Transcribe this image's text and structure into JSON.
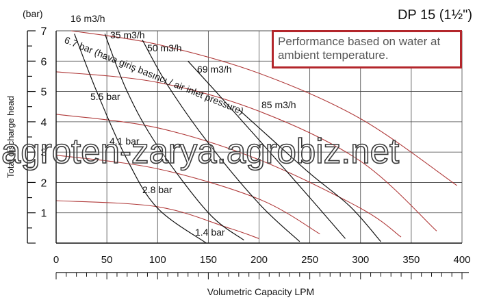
{
  "chart_data": {
    "type": "line",
    "title": "DP 15 (1½\")",
    "subtitle": "",
    "ylabel": "Total discharge head",
    "yunit": "(bar)",
    "xlabel": "Volumetric Capacity LPM",
    "xlim": [
      0,
      400
    ],
    "ylim": [
      0,
      7
    ],
    "xticks": [
      0,
      50,
      100,
      150,
      200,
      250,
      300,
      350,
      400
    ],
    "yticks": [
      1,
      2,
      3,
      4,
      5,
      6,
      7
    ],
    "grid": true,
    "annotation": "Performance based on water at ambient temperature.",
    "pressure_caption": "6.7 bar (hava giriş basıncı / air inlet pressure)",
    "watermark": "agroten-zarya.agrobiz.net",
    "pressure_curves": [
      {
        "label": "6.7 bar",
        "color": "#b03a3a",
        "points": [
          [
            15,
            7.0
          ],
          [
            100,
            6.55
          ],
          [
            200,
            5.6
          ],
          [
            300,
            4.1
          ],
          [
            395,
            1.9
          ]
        ]
      },
      {
        "label": "5.5 bar",
        "color": "#b03a3a",
        "points": [
          [
            0,
            5.65
          ],
          [
            100,
            5.3
          ],
          [
            200,
            4.35
          ],
          [
            300,
            2.7
          ],
          [
            375,
            0.4
          ]
        ]
      },
      {
        "label": "4.1 bar",
        "color": "#b03a3a",
        "points": [
          [
            0,
            4.25
          ],
          [
            100,
            3.8
          ],
          [
            200,
            2.75
          ],
          [
            300,
            1.15
          ],
          [
            340,
            0.2
          ]
        ]
      },
      {
        "label": "2.8 bar",
        "color": "#b03a3a",
        "points": [
          [
            0,
            2.9
          ],
          [
            100,
            2.45
          ],
          [
            200,
            1.45
          ],
          [
            260,
            0.3
          ]
        ]
      },
      {
        "label": "1.4 bar",
        "color": "#b03a3a",
        "points": [
          [
            0,
            1.4
          ],
          [
            100,
            1.2
          ],
          [
            170,
            0.5
          ],
          [
            200,
            0.15
          ]
        ]
      }
    ],
    "consumption_curves": [
      {
        "label": "16 m3/h",
        "color": "#111111",
        "points": [
          [
            18,
            6.9
          ],
          [
            40,
            5.0
          ],
          [
            70,
            2.75
          ],
          [
            100,
            1.15
          ],
          [
            148,
            0
          ]
        ]
      },
      {
        "label": "35 m3/h",
        "color": "#111111",
        "points": [
          [
            48,
            6.9
          ],
          [
            70,
            5.0
          ],
          [
            100,
            3.2
          ],
          [
            150,
            1.0
          ],
          [
            185,
            0.1
          ]
        ]
      },
      {
        "label": "50 m3/h",
        "color": "#111111",
        "points": [
          [
            85,
            6.7
          ],
          [
            110,
            5.2
          ],
          [
            150,
            3.3
          ],
          [
            200,
            1.3
          ],
          [
            240,
            0.05
          ]
        ]
      },
      {
        "label": "69 m3/h",
        "color": "#111111",
        "points": [
          [
            130,
            6.0
          ],
          [
            160,
            4.9
          ],
          [
            200,
            3.4
          ],
          [
            250,
            1.5
          ],
          [
            285,
            0.15
          ]
        ]
      },
      {
        "label": "85 m3/h",
        "color": "#111111",
        "points": [
          [
            180,
            4.4
          ],
          [
            210,
            3.5
          ],
          [
            250,
            2.3
          ],
          [
            290,
            1.2
          ],
          [
            320,
            0.05
          ]
        ]
      }
    ]
  }
}
